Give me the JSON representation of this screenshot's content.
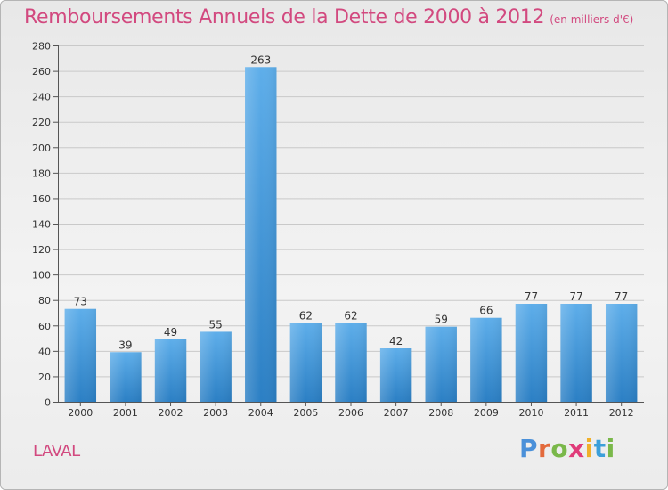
{
  "header": {
    "title": "Remboursements Annuels de la Dette de 2000 à 2012",
    "unit": "(en milliers d'€)"
  },
  "footer": {
    "town": "LAVAL",
    "brand": "Proxiti"
  },
  "colors": {
    "title": "#d2497f",
    "bar_top": "#5eaeea",
    "bar_bottom": "#2b7fc4",
    "grid": "#c9c9c9",
    "axis": "#555555"
  },
  "chart_data": {
    "type": "bar",
    "title": "Remboursements Annuels de la Dette de 2000 à 2012",
    "xlabel": "",
    "ylabel": "",
    "categories": [
      "2000",
      "2001",
      "2002",
      "2003",
      "2004",
      "2005",
      "2006",
      "2007",
      "2008",
      "2009",
      "2010",
      "2011",
      "2012"
    ],
    "values": [
      73,
      39,
      49,
      55,
      263,
      62,
      62,
      42,
      59,
      66,
      77,
      77,
      77
    ],
    "ylim": [
      0,
      280
    ],
    "yticks": [
      0,
      20,
      40,
      60,
      80,
      100,
      120,
      140,
      160,
      180,
      200,
      220,
      240,
      260,
      280
    ],
    "grid": true
  }
}
